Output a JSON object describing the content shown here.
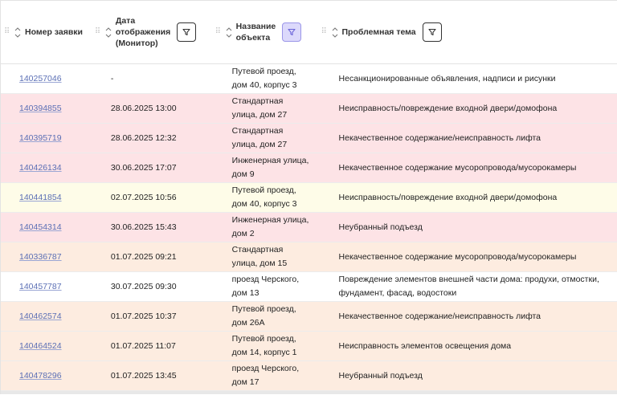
{
  "columns": {
    "number": "Номер заявки",
    "date": [
      "Дата",
      "отображения",
      "(Монитор)"
    ],
    "object": [
      "Название",
      "объекта"
    ],
    "topic": "Проблемная тема"
  },
  "rows": [
    {
      "id": "140257046",
      "date": "-",
      "obj": [
        "Путевой проезд,",
        "дом 40, корпус 3"
      ],
      "topic": [
        "Несанкционированные объявления, надписи и рисунки"
      ],
      "color": "white"
    },
    {
      "id": "140394855",
      "date": "28.06.2025 13:00",
      "obj": [
        "Стандартная",
        "улица, дом 27"
      ],
      "topic": [
        "Неисправность/повреждение входной двери/домофона"
      ],
      "color": "pink"
    },
    {
      "id": "140395719",
      "date": "28.06.2025 12:32",
      "obj": [
        "Стандартная",
        "улица, дом 27"
      ],
      "topic": [
        "Некачественное содержание/неисправность лифта"
      ],
      "color": "pink"
    },
    {
      "id": "140426134",
      "date": "30.06.2025 17:07",
      "obj": [
        "Инженерная улица,",
        "дом 9"
      ],
      "topic": [
        "Некачественное содержание мусоропровода/мусорокамеры"
      ],
      "color": "pink"
    },
    {
      "id": "140441854",
      "date": "02.07.2025 10:56",
      "obj": [
        "Путевой проезд,",
        "дом 40, корпус 3"
      ],
      "topic": [
        "Неисправность/повреждение входной двери/домофона"
      ],
      "color": "yellow"
    },
    {
      "id": "140454314",
      "date": "30.06.2025 15:43",
      "obj": [
        "Инженерная улица,",
        "дом 2"
      ],
      "topic": [
        "Неубранный подъезд"
      ],
      "color": "pink"
    },
    {
      "id": "140336787",
      "date": "01.07.2025 09:21",
      "obj": [
        "Стандартная",
        "улица, дом 15"
      ],
      "topic": [
        "Некачественное содержание мусоропровода/мусорокамеры"
      ],
      "color": "peach"
    },
    {
      "id": "140457787",
      "date": "30.07.2025 09:30",
      "obj": [
        "проезд Черского,",
        "дом 13"
      ],
      "topic": [
        "Повреждение элементов внешней части дома: продухи, отмостки,",
        "фундамент, фасад, водостоки"
      ],
      "color": "white"
    },
    {
      "id": "140462574",
      "date": "01.07.2025 10:37",
      "obj": [
        "Путевой проезд,",
        "дом 26А"
      ],
      "topic": [
        "Некачественное содержание/неисправность лифта"
      ],
      "color": "peach"
    },
    {
      "id": "140464524",
      "date": "01.07.2025 11:07",
      "obj": [
        "Путевой проезд,",
        "дом 14, корпус 1"
      ],
      "topic": [
        "Неисправность элементов освещения дома"
      ],
      "color": "peach"
    },
    {
      "id": "140478296",
      "date": "01.07.2025 13:45",
      "obj": [
        "проезд Черского,",
        "дом 17"
      ],
      "topic": [
        "Неубранный подъезд"
      ],
      "color": "peach"
    }
  ],
  "icons": {
    "drag": "drag-handle-icon",
    "sort": "sort-arrows-icon",
    "filter": "filter-icon"
  },
  "colors": {
    "pink": "#fde3e6",
    "yellow": "#fefce8",
    "peach": "#fdece0",
    "white": "#ffffff",
    "link": "#5b6fb5",
    "filter_active": "#dcd9fb"
  }
}
